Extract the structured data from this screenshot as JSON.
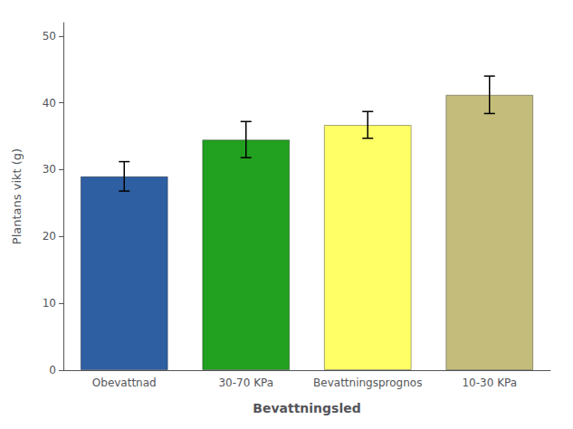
{
  "chart_data": {
    "type": "bar",
    "categories": [
      "Obevattnad",
      "30-70 KPa",
      "Bevattningsprognos",
      "10-30 KPa"
    ],
    "values": [
      29.0,
      34.5,
      36.7,
      41.2
    ],
    "errors": [
      2.2,
      2.7,
      2.0,
      2.8
    ],
    "colors": [
      "#2E5FA3",
      "#22A020",
      "#FFFF66",
      "#C4BC7A"
    ],
    "xlabel": "Bevattningsled",
    "ylabel": "Plantans vikt (g)",
    "ylim": [
      0,
      52
    ],
    "yticks": [
      0,
      10,
      20,
      30,
      40,
      50
    ],
    "grid": false
  }
}
